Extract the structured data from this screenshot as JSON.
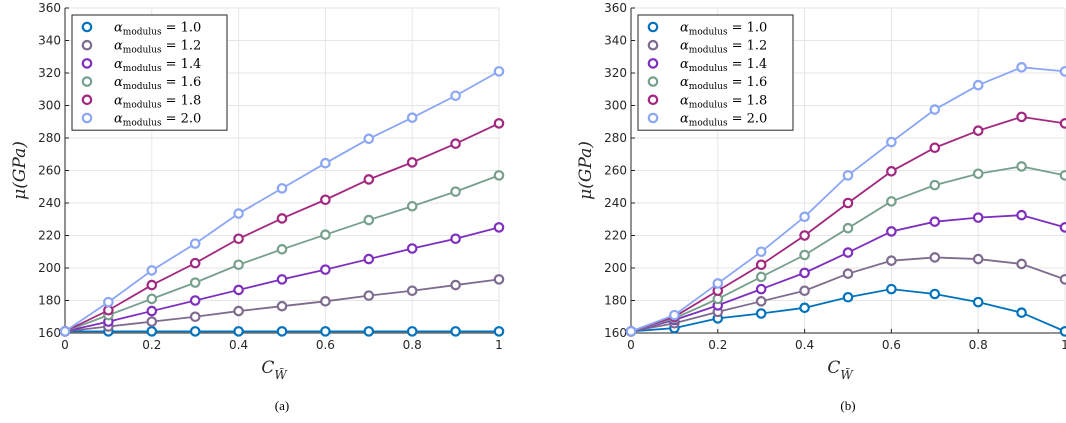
{
  "chart_data": [
    {
      "type": "line",
      "caption": "(a)",
      "xlabel": "C",
      "xlabel_sub": "W̃",
      "ylabel": "μ(GPa)",
      "xlim": [
        0,
        1
      ],
      "ylim": [
        160,
        360
      ],
      "x_ticks": [
        "0",
        "0.2",
        "0.4",
        "0.6",
        "0.8",
        "1"
      ],
      "y_ticks": [
        "160",
        "180",
        "200",
        "220",
        "240",
        "260",
        "280",
        "300",
        "320",
        "340",
        "360"
      ],
      "grid": true,
      "legend_position": "top-left",
      "x": [
        0,
        0.1,
        0.2,
        0.3,
        0.4,
        0.5,
        0.6,
        0.7,
        0.8,
        0.9,
        1.0
      ],
      "series": [
        {
          "name": "α_modulus = 1.0",
          "symbol": "α",
          "sub": "modulus",
          "value_text": "= 1.0",
          "color": "#0072bd",
          "values": [
            161,
            161,
            161,
            161,
            161,
            161,
            161,
            161,
            161,
            161,
            161
          ]
        },
        {
          "name": "α_modulus = 1.2",
          "symbol": "α",
          "sub": "modulus",
          "value_text": "= 1.2",
          "color": "#7e6b8f",
          "values": [
            161,
            164,
            167,
            170,
            173.5,
            176.5,
            179.5,
            183,
            186,
            189.5,
            193
          ]
        },
        {
          "name": "α_modulus = 1.4",
          "symbol": "α",
          "sub": "modulus",
          "value_text": "= 1.4",
          "color": "#7e2fbe",
          "values": [
            161,
            167,
            173.5,
            180,
            186.5,
            193,
            199,
            205.5,
            212,
            218,
            225
          ]
        },
        {
          "name": "α_modulus = 1.6",
          "symbol": "α",
          "sub": "modulus",
          "value_text": "= 1.6",
          "color": "#77a08c",
          "values": [
            161,
            171,
            181,
            191,
            202,
            211.5,
            220.5,
            229.5,
            238,
            247,
            257
          ]
        },
        {
          "name": "α_modulus = 1.8",
          "symbol": "α",
          "sub": "modulus",
          "value_text": "= 1.8",
          "color": "#a2287f",
          "values": [
            161,
            174,
            189.5,
            203,
            218,
            230.5,
            242,
            254.5,
            265,
            276.5,
            289
          ]
        },
        {
          "name": "α_modulus = 2.0",
          "symbol": "α",
          "sub": "modulus",
          "value_text": "= 2.0",
          "color": "#8aa6f5",
          "values": [
            161,
            179,
            198.5,
            215,
            233.5,
            249,
            264.5,
            279.5,
            292.5,
            306,
            321
          ]
        }
      ]
    },
    {
      "type": "line",
      "caption": "(b)",
      "xlabel": "C",
      "xlabel_sub": "W̃",
      "ylabel": "μ(GPa)",
      "xlim": [
        0,
        1
      ],
      "ylim": [
        160,
        360
      ],
      "x_ticks": [
        "0",
        "0.2",
        "0.4",
        "0.6",
        "0.8",
        "1"
      ],
      "y_ticks": [
        "160",
        "180",
        "200",
        "220",
        "240",
        "260",
        "280",
        "300",
        "320",
        "340",
        "360"
      ],
      "grid": true,
      "legend_position": "top-left",
      "x": [
        0,
        0.1,
        0.2,
        0.3,
        0.4,
        0.5,
        0.6,
        0.7,
        0.8,
        0.9,
        1.0
      ],
      "series": [
        {
          "name": "α_modulus = 1.0",
          "symbol": "α",
          "sub": "modulus",
          "value_text": "= 1.0",
          "color": "#0072bd",
          "values": [
            161,
            163,
            169,
            172,
            175.5,
            182,
            187,
            184,
            179,
            172.5,
            161
          ]
        },
        {
          "name": "α_modulus = 1.2",
          "symbol": "α",
          "sub": "modulus",
          "value_text": "= 1.2",
          "color": "#7e6b8f",
          "values": [
            161,
            166,
            173,
            179.5,
            186,
            196.5,
            204.5,
            206.5,
            205.5,
            202.5,
            193
          ]
        },
        {
          "name": "α_modulus = 1.4",
          "symbol": "α",
          "sub": "modulus",
          "value_text": "= 1.4",
          "color": "#7e2fbe",
          "values": [
            161,
            168,
            177,
            187,
            197,
            209.5,
            222.5,
            228.5,
            231,
            232.5,
            225
          ]
        },
        {
          "name": "α_modulus = 1.6",
          "symbol": "α",
          "sub": "modulus",
          "value_text": "= 1.6",
          "color": "#77a08c",
          "values": [
            161,
            169,
            181,
            194.5,
            208,
            224.5,
            241,
            251,
            258,
            262.5,
            257
          ]
        },
        {
          "name": "α_modulus = 1.8",
          "symbol": "α",
          "sub": "modulus",
          "value_text": "= 1.8",
          "color": "#a2287f",
          "values": [
            161,
            170,
            186,
            202,
            220,
            240,
            259.5,
            274,
            284.5,
            293,
            289
          ]
        },
        {
          "name": "α_modulus = 2.0",
          "symbol": "α",
          "sub": "modulus",
          "value_text": "= 2.0",
          "color": "#8aa6f5",
          "values": [
            161,
            171,
            190.5,
            210,
            231.5,
            257,
            277.5,
            297.5,
            312.5,
            323.5,
            321
          ]
        }
      ]
    }
  ]
}
